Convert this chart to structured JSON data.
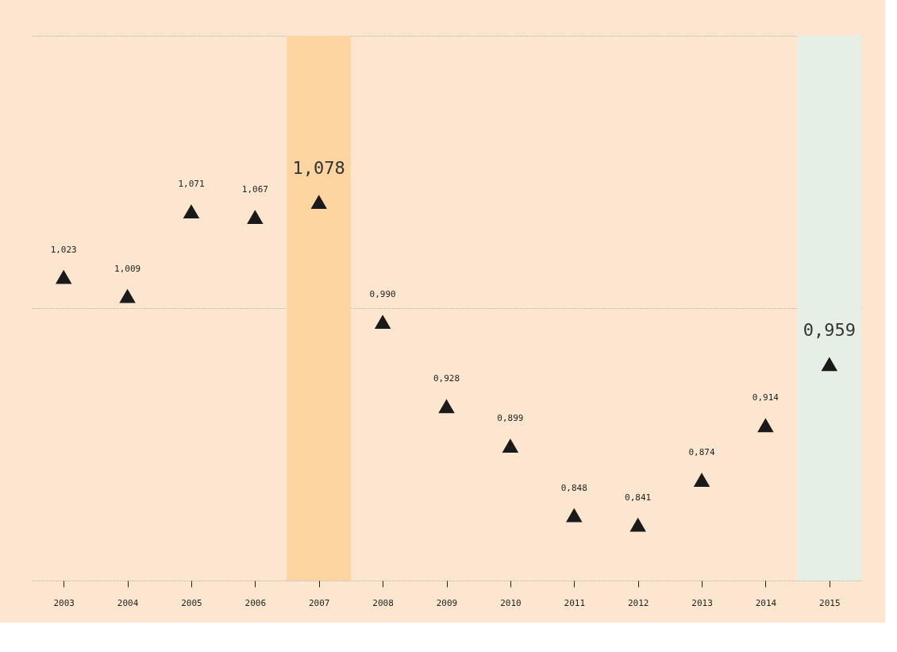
{
  "chart_data": {
    "type": "scatter",
    "marker": "triangle",
    "categories": [
      "2003",
      "2004",
      "2005",
      "2006",
      "2007",
      "2008",
      "2009",
      "2010",
      "2011",
      "2012",
      "2013",
      "2014",
      "2015"
    ],
    "series": [
      {
        "color": "#1a1a1a",
        "values": [
          1.023,
          1.009,
          1.071,
          1.067,
          1.078,
          0.99,
          0.928,
          0.899,
          0.848,
          0.841,
          0.874,
          0.914,
          0.959
        ],
        "value_labels": [
          "1,023",
          "1,009",
          "1,071",
          "1,067",
          "1,078",
          "0,990",
          "0,928",
          "0,899",
          "0,848",
          "0,841",
          "0,874",
          "0,914",
          "0,959"
        ]
      }
    ],
    "ylim": [
      0.8,
      1.2
    ],
    "yticks": [
      {
        "value": 0.8,
        "label": null
      },
      {
        "value": 1.0,
        "label": null
      },
      {
        "value": 1.2,
        "label": null
      }
    ],
    "tick_labels": "x",
    "grid": "y",
    "bands": [
      {
        "axis": "x",
        "from": "2007",
        "to": "2007",
        "color": "#fcd5a0"
      },
      {
        "axis": "x",
        "from": "2015",
        "to": "2015",
        "color": "#e6efe6"
      }
    ]
  }
}
